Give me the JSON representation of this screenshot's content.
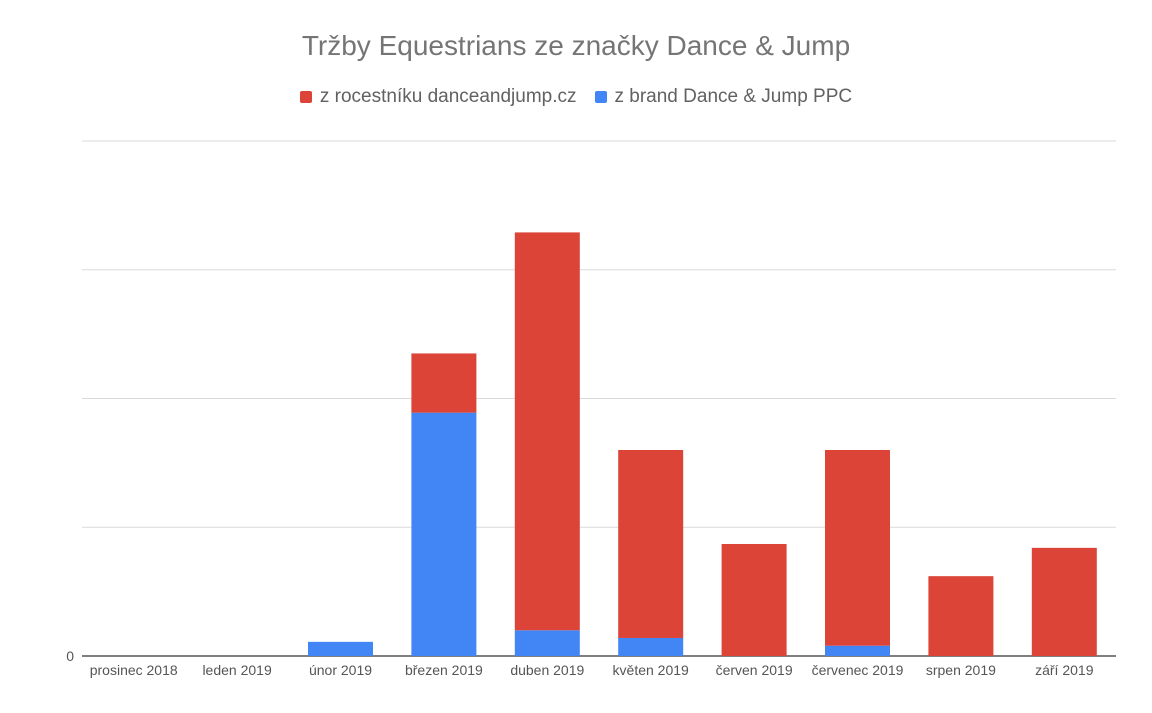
{
  "title": "Tržby Equestrians ze značky Dance & Jump",
  "colors": {
    "red": "#db4437",
    "blue": "#4285f4",
    "grid": "#dadada",
    "axis": "#333333"
  },
  "chart_data": {
    "type": "bar",
    "stacked": true,
    "categories": [
      "prosinec 2018",
      "leden 2019",
      "únor 2019",
      "březen 2019",
      "duben 2019",
      "květen 2019",
      "červen 2019",
      "červenec 2019",
      "srpen 2019",
      "září 2019"
    ],
    "series": [
      {
        "name": "z brand Dance & Jump PPC",
        "color": "#4285f4",
        "values": [
          0,
          0,
          0.55,
          9.45,
          1.0,
          0.7,
          0,
          0.4,
          0,
          0
        ]
      },
      {
        "name": "z rocestníku danceandjump.cz",
        "color": "#db4437",
        "values": [
          0,
          0,
          0,
          2.3,
          15.45,
          7.3,
          4.35,
          7.6,
          3.1,
          4.2
        ]
      }
    ],
    "ylim": [
      0,
      20
    ],
    "y_gridlines": [
      0,
      5,
      10,
      15,
      20
    ],
    "y_tick_labels": [
      {
        "value": 0,
        "label": "0"
      }
    ],
    "legend": {
      "position": "top",
      "order": [
        "z rocestníku danceandjump.cz",
        "z brand Dance & Jump PPC"
      ]
    },
    "grid": true
  }
}
